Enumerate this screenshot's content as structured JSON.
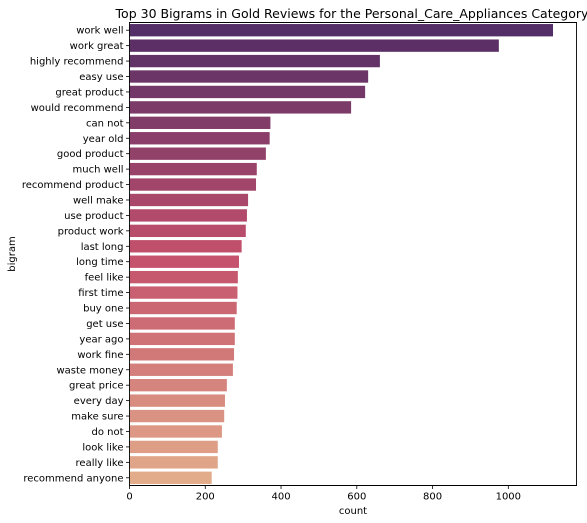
{
  "chart_data": {
    "type": "bar",
    "orientation": "horizontal",
    "title": "Top 30 Bigrams in Gold Reviews for the Personal_Care_Appliances Category",
    "xlabel": "count",
    "ylabel": "bigram",
    "xlim": [
      0,
      1180
    ],
    "xticks": [
      0,
      200,
      400,
      600,
      800,
      1000
    ],
    "grid": false,
    "legend": "none",
    "palette": "flare",
    "color_start": "#542e66",
    "color_mid": "#c4506c",
    "color_end": "#e2ab8a",
    "categories": [
      "work well",
      "work great",
      "highly recommend",
      "easy use",
      "great product",
      "would recommend",
      "can not",
      "year old",
      "good product",
      "much well",
      "recommend product",
      "well make",
      "use product",
      "product work",
      "last long",
      "long time",
      "feel like",
      "first time",
      "buy one",
      "get use",
      "year ago",
      "work fine",
      "waste money",
      "great price",
      "every day",
      "make sure",
      "do not",
      "look like",
      "really like",
      "recommend anyone"
    ],
    "values": [
      1118,
      975,
      661,
      630,
      622,
      585,
      372,
      370,
      360,
      336,
      334,
      313,
      310,
      307,
      296,
      289,
      286,
      285,
      283,
      278,
      278,
      276,
      273,
      257,
      252,
      250,
      244,
      233,
      233,
      217
    ]
  }
}
